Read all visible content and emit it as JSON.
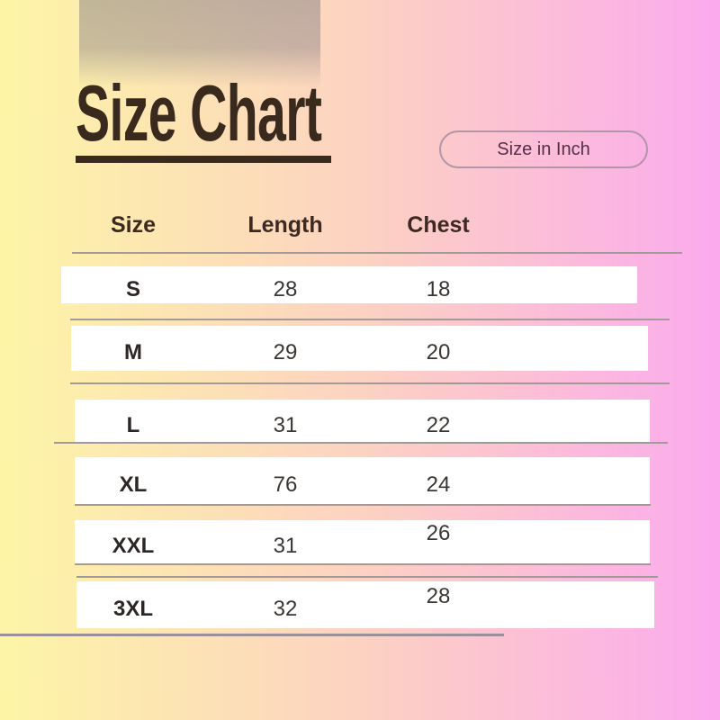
{
  "title": "Size Chart",
  "unit_badge": "Size in Inch",
  "table": {
    "headers": [
      "Size",
      "Length",
      "Chest"
    ],
    "rows": [
      {
        "size": "S",
        "length": "28",
        "chest": "18"
      },
      {
        "size": "M",
        "length": "29",
        "chest": "20"
      },
      {
        "size": "L",
        "length": "31",
        "chest": "22"
      },
      {
        "size": "XL",
        "length": "76",
        "chest": "24"
      },
      {
        "size": "XXL",
        "length": "31",
        "chest": "26"
      },
      {
        "size": "3XL",
        "length": "32",
        "chest": "28"
      }
    ]
  },
  "chart_data": {
    "type": "table",
    "title": "Size Chart",
    "unit": "Size in Inch",
    "columns": [
      "Size",
      "Length",
      "Chest"
    ],
    "rows": [
      [
        "S",
        28,
        18
      ],
      [
        "M",
        29,
        20
      ],
      [
        "L",
        31,
        22
      ],
      [
        "XL",
        76,
        24
      ],
      [
        "XXL",
        31,
        26
      ],
      [
        "3XL",
        32,
        28
      ]
    ]
  },
  "colors": {
    "background_left": "#fdf5a6",
    "background_right": "#fbaaee",
    "title_text": "#3a2a1d",
    "header_text": "#3c2a22",
    "cell_text": "#3a3633",
    "row_background": "#ffffff",
    "divider_line": "#a29a96",
    "badge_border": "#b196a8",
    "badge_text": "#53304a"
  }
}
